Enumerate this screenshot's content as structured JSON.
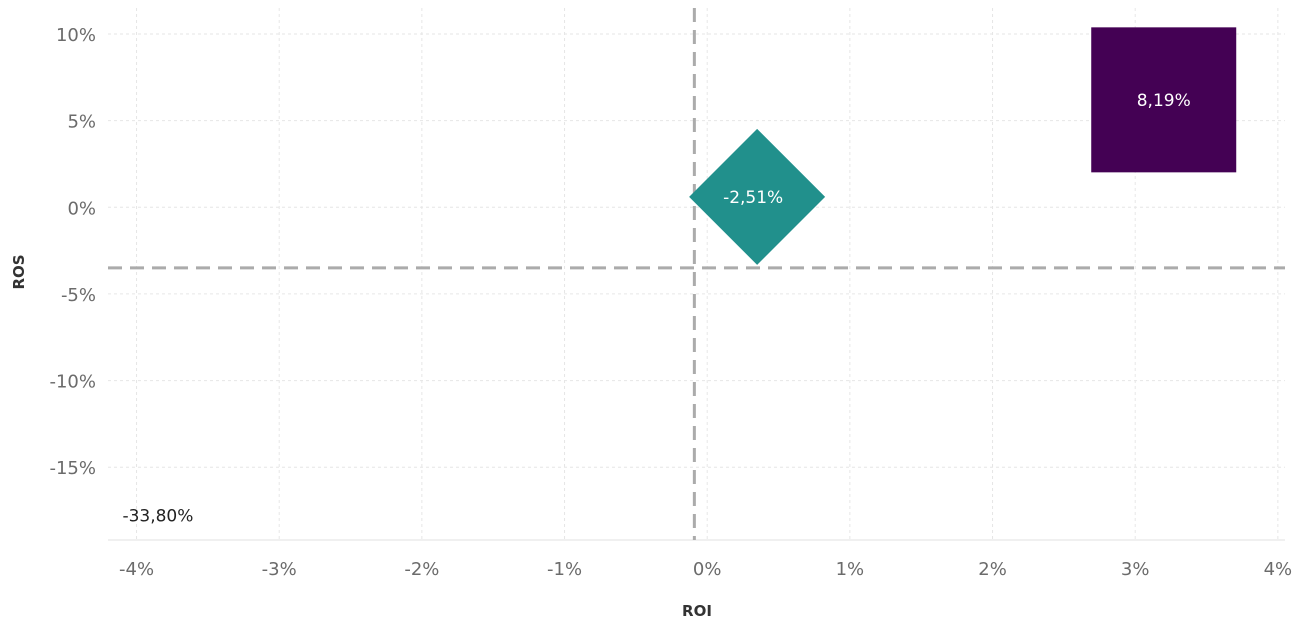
{
  "chart_data": {
    "type": "scatter",
    "title": "",
    "xlabel": "ROI",
    "ylabel": "ROS",
    "xlim": [
      -4.2,
      4.05
    ],
    "ylim": [
      -19.2,
      11.5
    ],
    "x_ticks": [
      -4,
      -3,
      -2,
      -1,
      0,
      1,
      2,
      3,
      4
    ],
    "y_ticks": [
      10,
      5,
      0,
      -5,
      -10,
      -15
    ],
    "x_tick_labels": [
      "-4%",
      "-3%",
      "-2%",
      "-1%",
      "0%",
      "1%",
      "2%",
      "3%",
      "4%"
    ],
    "y_tick_labels": [
      "10%",
      "5%",
      "0%",
      "-5%",
      "-10%",
      "-15%"
    ],
    "grid": true,
    "reference_lines": {
      "x": -0.09,
      "y": -3.5
    },
    "points": [
      {
        "x": 3.2,
        "y": 6.2,
        "label": "8,19%",
        "shape": "square",
        "color": "#440154"
      },
      {
        "x": 0.35,
        "y": 0.6,
        "label": "-2,51%",
        "shape": "diamond",
        "color": "#21908c"
      },
      {
        "x": -3.85,
        "y": -17.8,
        "label": "-33,80%",
        "shape": "none",
        "color": "#fde725"
      }
    ]
  }
}
